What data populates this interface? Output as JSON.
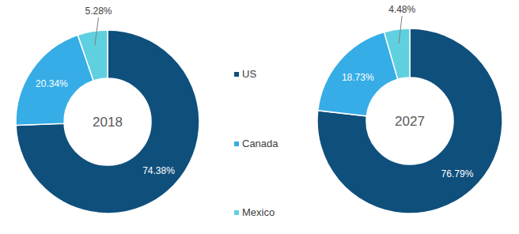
{
  "chart_data": [
    {
      "type": "donut",
      "title": "2018",
      "categories": [
        "US",
        "Canada",
        "Mexico"
      ],
      "values": [
        74.38,
        20.34,
        5.28
      ],
      "value_labels": [
        "74.38%",
        "20.34%",
        "5.28%"
      ],
      "colors": [
        "#0f4f7c",
        "#36ade6",
        "#5fd0df"
      ],
      "data_labels": true,
      "legend": "right"
    },
    {
      "type": "donut",
      "title": "2027",
      "categories": [
        "US",
        "Canada",
        "Mexico"
      ],
      "values": [
        76.79,
        18.73,
        4.48
      ],
      "value_labels": [
        "76.79%",
        "18.73%",
        "4.48%"
      ],
      "colors": [
        "#0f4f7c",
        "#36ade6",
        "#5fd0df"
      ],
      "data_labels": true
    }
  ]
}
